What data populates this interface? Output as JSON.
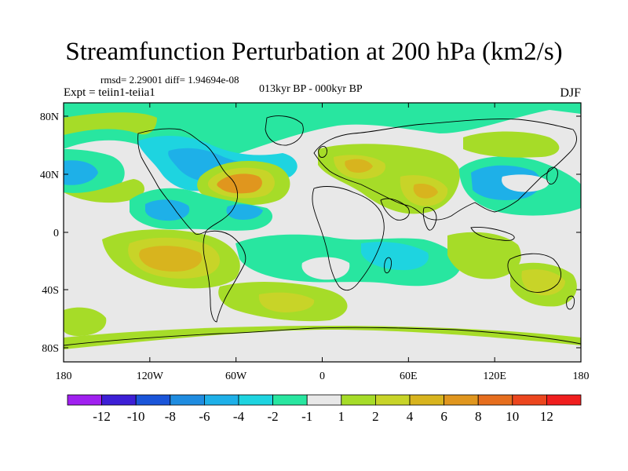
{
  "title": "Streamfunction Perturbation at 200 hPa (km2/s)",
  "stats": "rmsd= 2.29001 diff= 1.94694e-08",
  "experiment": "Expt = teiin1-teiia1",
  "period": "013kyr BP - 000kyr BP",
  "season": "DJF",
  "axes": {
    "x_ticks": [
      "180",
      "120W",
      "60W",
      "0",
      "60E",
      "120E",
      "180"
    ],
    "y_ticks": [
      "80N",
      "40N",
      "0",
      "40S",
      "80S"
    ]
  },
  "colorbar": {
    "labels": [
      "-12",
      "-10",
      "-8",
      "-6",
      "-4",
      "-2",
      "-1",
      "1",
      "2",
      "4",
      "6",
      "8",
      "10",
      "12"
    ],
    "colors": [
      "#a020f0",
      "#3d1fd6",
      "#1a55d9",
      "#1f8ce0",
      "#1eb0e8",
      "#1ed4e0",
      "#28e6a0",
      "#e8e8e8",
      "#a6dc28",
      "#c8d428",
      "#d8b41e",
      "#e0961e",
      "#e66e1e",
      "#ec461e",
      "#f01e1e"
    ]
  },
  "colors": {
    "neutral": "#e8e8e8",
    "neg1": "#28e6a0",
    "neg2": "#1ed4e0",
    "neg4": "#1eb0e8",
    "neg6": "#1f8ce0",
    "pos1": "#a6dc28",
    "pos2": "#c8d428",
    "pos4": "#d8b41e",
    "pos6": "#e0961e"
  }
}
